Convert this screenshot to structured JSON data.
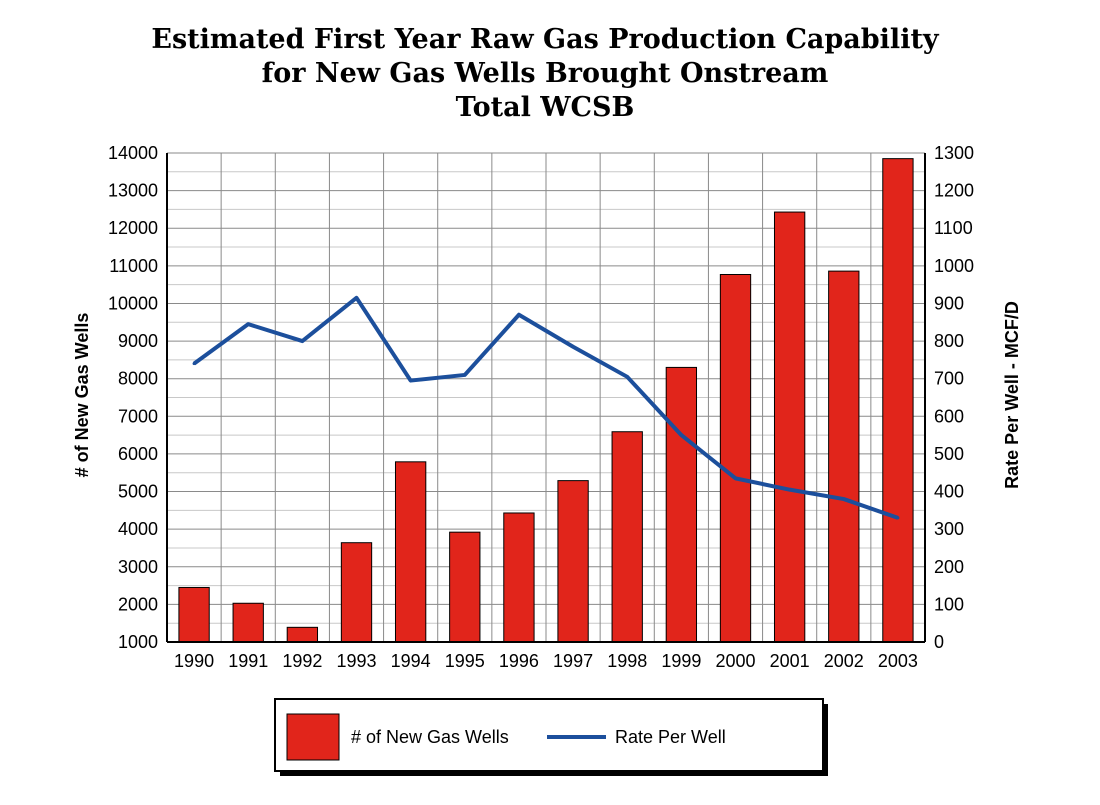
{
  "chart_data": {
    "type": "bar",
    "title": "Estimated First Year Raw Gas Production Capability",
    "subtitle_lines": [
      "for New Gas Wells Brought Onstream",
      "Total WCSB"
    ],
    "categories": [
      "1990",
      "1991",
      "1992",
      "1993",
      "1994",
      "1995",
      "1996",
      "1997",
      "1998",
      "1999",
      "2000",
      "2001",
      "2002",
      "2003"
    ],
    "series": [
      {
        "name": "# of New Gas Wells",
        "kind": "bar",
        "axis": "left",
        "color": "#e1251b",
        "values": [
          2450,
          2030,
          1390,
          3640,
          5790,
          3920,
          4430,
          5290,
          6590,
          8300,
          10770,
          12430,
          10860,
          13850
        ]
      },
      {
        "name": "Rate Per Well",
        "kind": "line",
        "axis": "right",
        "color": "#1c4f9c",
        "values": [
          740,
          845,
          800,
          915,
          695,
          710,
          870,
          785,
          705,
          550,
          435,
          405,
          380,
          330
        ]
      }
    ],
    "ylabel": "# of New Gas Wells",
    "ylim": [
      1000,
      14000
    ],
    "yticks": [
      1000,
      2000,
      3000,
      4000,
      5000,
      6000,
      7000,
      8000,
      9000,
      10000,
      11000,
      12000,
      13000,
      14000
    ],
    "y2label": "Rate Per Well - MCF/D",
    "y2lim": [
      0,
      1300
    ],
    "y2ticks": [
      0,
      100,
      200,
      300,
      400,
      500,
      600,
      700,
      800,
      900,
      1000,
      1100,
      1200,
      1300
    ],
    "grid": true,
    "legend": "bottom"
  }
}
